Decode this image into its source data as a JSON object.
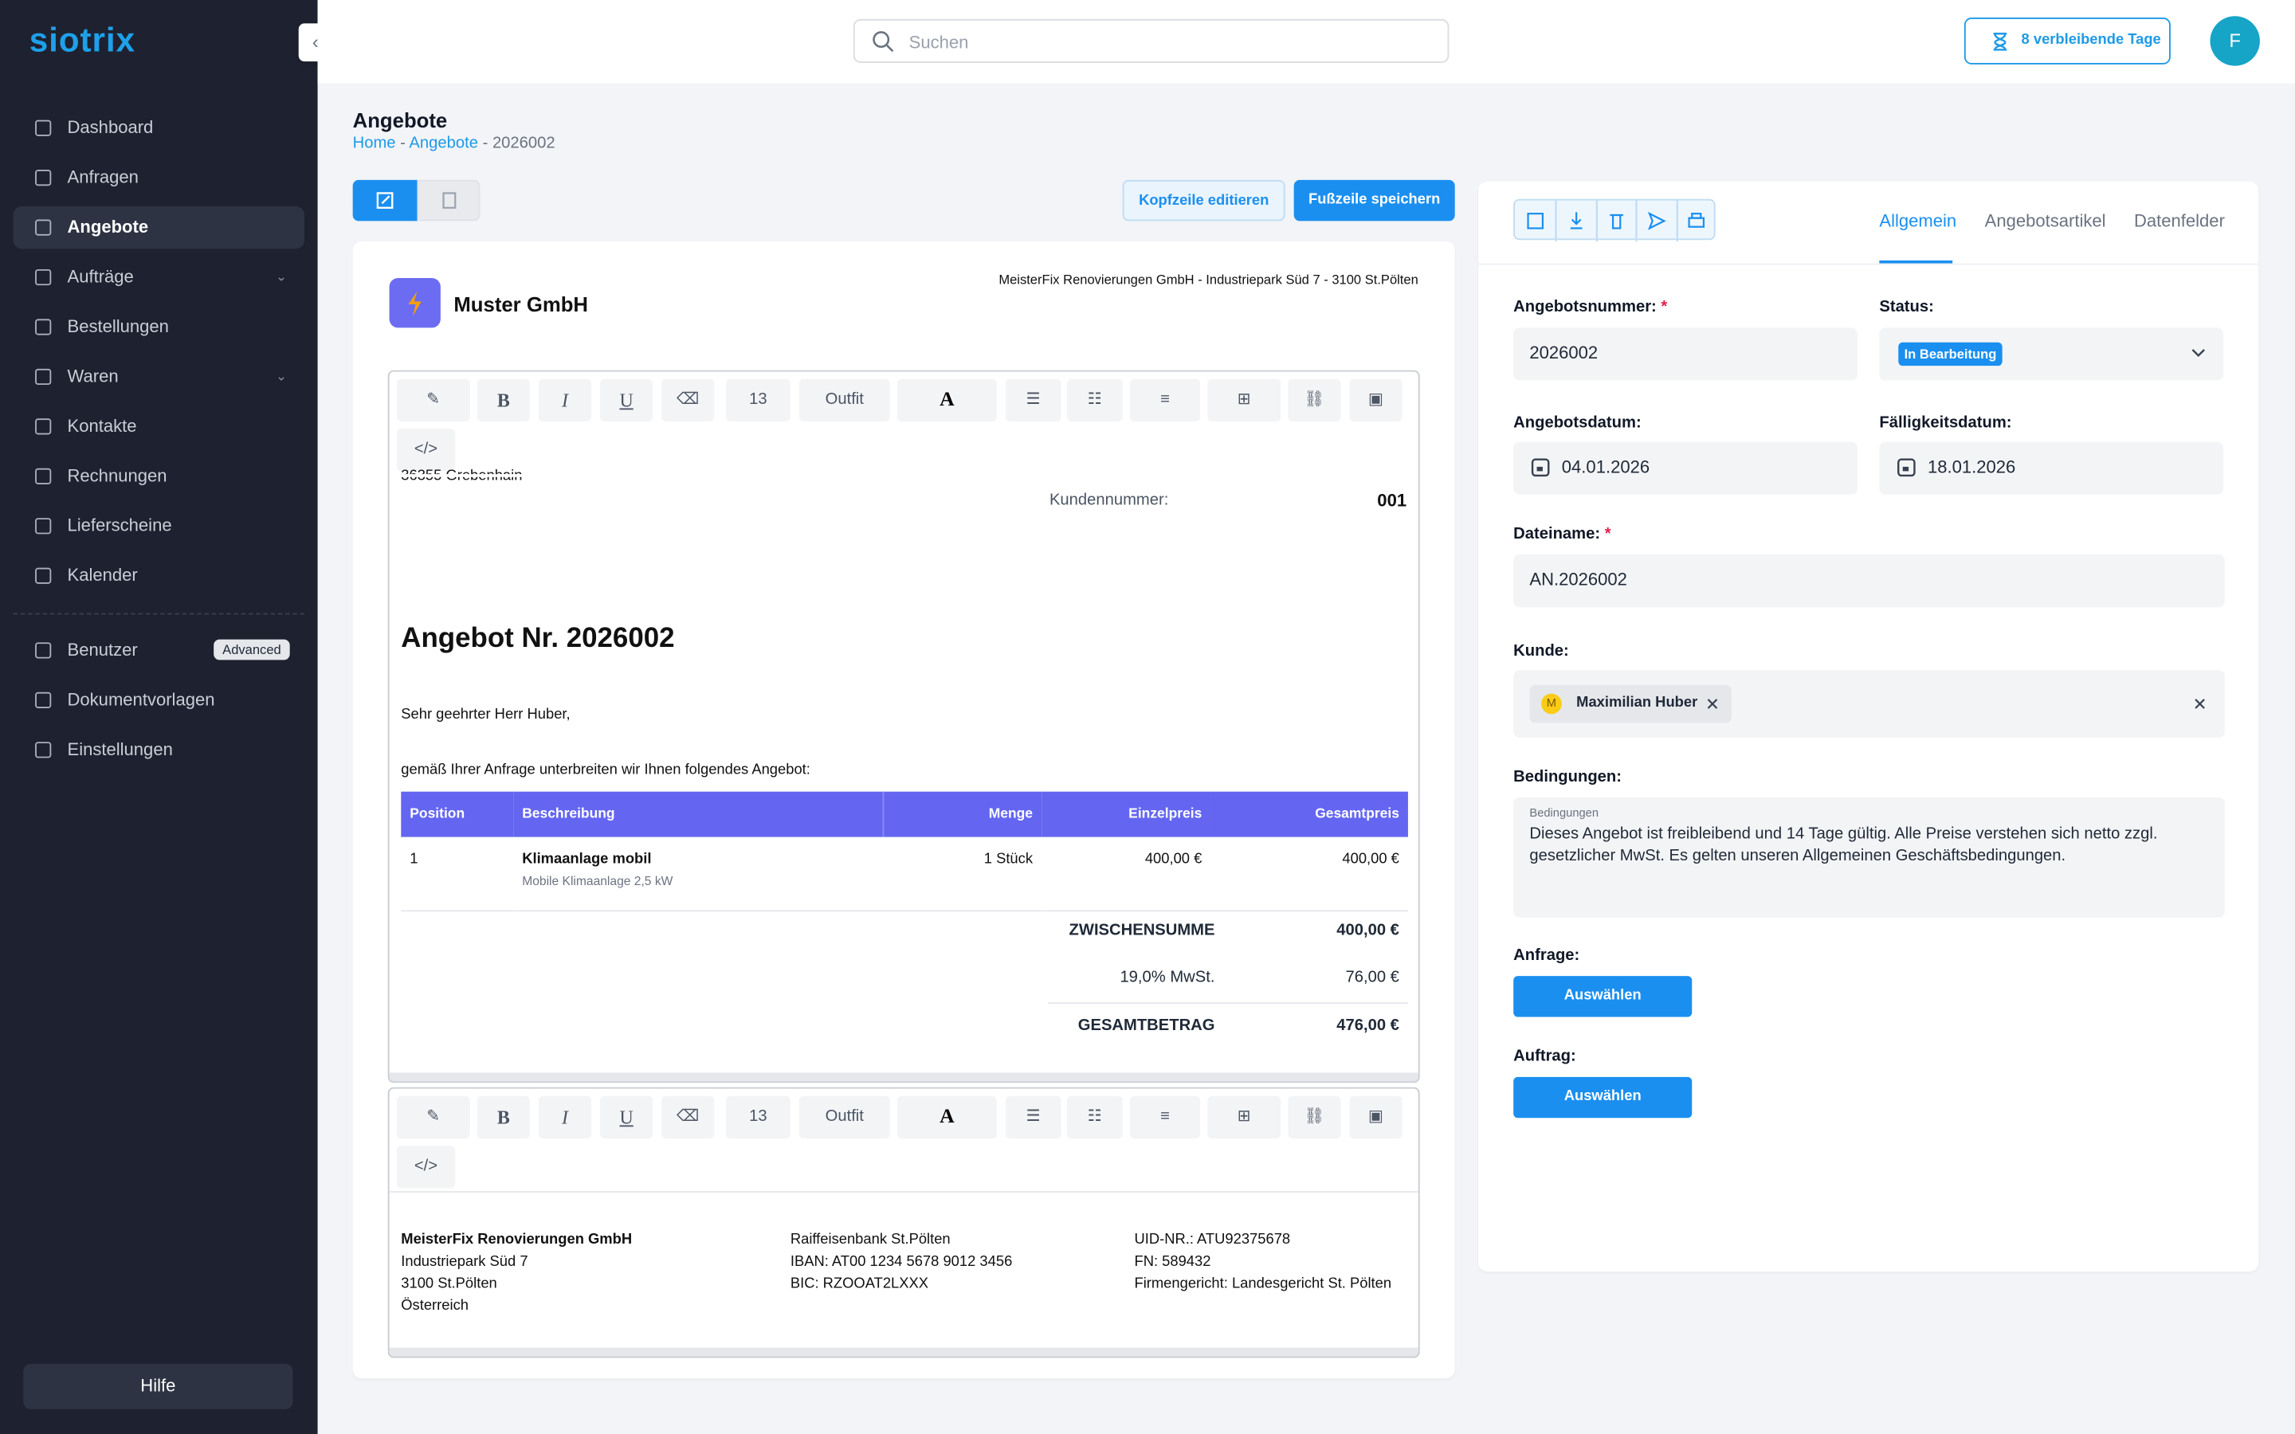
{
  "sidebar": {
    "brand": "siotrix",
    "nav": [
      "Dashboard",
      "Anfragen",
      "Angebote",
      "Aufträge",
      "Bestellungen",
      "Waren",
      "Kontakte",
      "Rechnungen",
      "Lieferscheine",
      "Kalender"
    ],
    "nav_secondary": [
      "Benutzer",
      "Dokumentvorlagen",
      "Einstellungen"
    ],
    "badge": "Advanced",
    "help": "Hilfe"
  },
  "header": {
    "search": "Suchen",
    "trial": "8 verbleibende Tage",
    "avatar": "F"
  },
  "page": {
    "title": "Angebote",
    "breadcrumb": [
      "Home",
      "Angebote",
      "2026002"
    ],
    "separator": "-",
    "edit_header": "Kopfzeile editieren",
    "save_footer": "Fußzeile speichern"
  },
  "toolbar": {
    "font_size": "13",
    "font_family": "Outfit",
    "bold": "B",
    "italic": "I",
    "underline": "U",
    "color": "A",
    "code": "</>"
  },
  "document": {
    "company": "Muster GmbH",
    "sender_line": "MeisterFix Renovierungen GmbH - Industriepark Süd 7 - 3100 St.Pölten",
    "address_cut": "36355 Grebenhain",
    "customer_label": "Kundennummer:",
    "customer_number": "001",
    "heading": "Angebot Nr. 2026002",
    "greeting": "Sehr geehrter Herr Huber,",
    "intro": "gemäß Ihrer Anfrage unterbreiten wir Ihnen folgendes Angebot:",
    "table": {
      "columns": [
        "Position",
        "Beschreibung",
        "Menge",
        "Einzelpreis",
        "Gesamtpreis"
      ],
      "rows": [
        [
          "1",
          "Klimaanlage mobil",
          "1 Stück",
          "400,00 €",
          "400,00 €"
        ]
      ],
      "row_notes": [
        "Mobile Klimaanlage 2,5 kW"
      ]
    },
    "totals": [
      [
        "ZWISCHENSUMME",
        "400,00 €"
      ],
      [
        "19,0% MwSt.",
        "76,00 €"
      ],
      [
        "GESAMTBETRAG",
        "476,00 €"
      ]
    ],
    "footer": [
      [
        "MeisterFix Renovierungen GmbH",
        "Industriepark Süd 7",
        "3100 St.Pölten",
        "Österreich"
      ],
      [
        "Raiffeisenbank St.Pölten",
        "IBAN: AT00 1234 5678 9012 3456",
        "BIC: RZOOAT2LXXX"
      ],
      [
        "UID-NR.: ATU92375678",
        "FN: 589432",
        "Firmengericht: Landesgericht St. Pölten"
      ]
    ]
  },
  "form": {
    "tabs": [
      "Allgemein",
      "Angebotsartikel",
      "Datenfelder"
    ],
    "required": "*",
    "offer_number_label": "Angebotsnummer:",
    "offer_number": "2026002",
    "status_label": "Status:",
    "status": "In Bearbeitung",
    "date_label": "Angebotsdatum:",
    "date": "04.01.2026",
    "due_label": "Fälligkeitsdatum:",
    "due": "18.01.2026",
    "filename_label": "Dateiname:",
    "filename": "AN.2026002",
    "customer_label": "Kunde:",
    "customer_initial": "M",
    "customer": "Maximilian Huber",
    "terms_label": "Bedingungen:",
    "terms_placeholder": "Bedingungen",
    "terms": "Dieses Angebot ist freibleibend und 14 Tage gültig. Alle Preise verstehen sich netto zzgl. gesetzlicher MwSt. Es gelten unseren Allgemeinen Geschäftsbedingungen.",
    "request_label": "Anfrage:",
    "order_label": "Auftrag:",
    "select": "Auswählen"
  }
}
